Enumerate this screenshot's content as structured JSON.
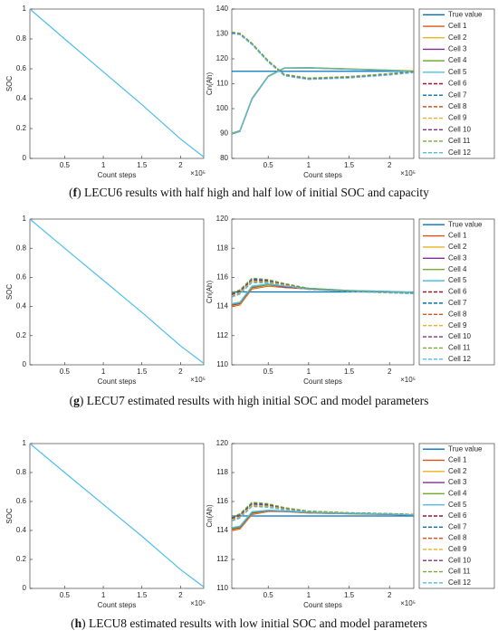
{
  "chart_data": [
    {
      "type": "line",
      "x_label": "Count steps",
      "y_label": "SOC",
      "x_exponent": "×10⁵",
      "xlim": [
        0.05,
        2.3
      ],
      "xticks": [
        0.5,
        1,
        1.5,
        2
      ],
      "ylim": [
        0,
        1
      ],
      "yticks": [
        0,
        0.2,
        0.4,
        0.6,
        0.8,
        1
      ],
      "x": [
        0.05,
        0.5,
        1,
        1.5,
        2,
        2.3
      ],
      "series": [
        {
          "color": "#4DBEEE",
          "values": [
            1,
            0.8,
            0.58,
            0.36,
            0.13,
            0.01
          ]
        }
      ]
    },
    {
      "type": "line",
      "x_label": "Count steps",
      "y_label": "Cn(Ah)",
      "x_exponent": "×10⁵",
      "xlim": [
        0.05,
        2.3
      ],
      "xticks": [
        0.5,
        1,
        1.5,
        2
      ],
      "ylim": [
        80,
        140
      ],
      "yticks": [
        80,
        90,
        100,
        110,
        120,
        130,
        140
      ],
      "legend": "outside right",
      "x": [
        0.05,
        0.15,
        0.3,
        0.5,
        0.7,
        1.0,
        1.5,
        2.0,
        2.3
      ],
      "series": [
        {
          "name": "True value",
          "color": "#0072BD",
          "dash": false,
          "values": [
            115,
            115,
            115,
            115,
            115,
            115,
            115,
            115,
            115
          ]
        },
        {
          "name": "Cell 1",
          "color": "#D95319",
          "dash": false,
          "values": [
            90,
            91,
            104,
            113,
            116.3,
            116.4,
            115.9,
            115.4,
            115.1
          ]
        },
        {
          "name": "Cell 2",
          "color": "#EDB120",
          "dash": false,
          "values": [
            90.2,
            91.2,
            104.2,
            113.1,
            116.4,
            116.5,
            116,
            115.5,
            115.2
          ]
        },
        {
          "name": "Cell 3",
          "color": "#7E2F8E",
          "dash": false,
          "values": [
            89.8,
            90.8,
            103.8,
            112.9,
            116.2,
            116.3,
            115.8,
            115.3,
            115
          ]
        },
        {
          "name": "Cell 4",
          "color": "#77AC30",
          "dash": false,
          "values": [
            90.1,
            91.1,
            104.1,
            113,
            116.3,
            116.4,
            115.9,
            115.4,
            115.1
          ]
        },
        {
          "name": "Cell 5",
          "color": "#4DBEEE",
          "dash": false,
          "values": [
            89.9,
            90.9,
            103.9,
            112.8,
            116.2,
            116.3,
            115.8,
            115.3,
            115
          ]
        },
        {
          "name": "Cell 6",
          "color": "#A2142F",
          "dash": true,
          "values": [
            130.5,
            130,
            126,
            119,
            113.5,
            112,
            112.6,
            113.8,
            114.8
          ]
        },
        {
          "name": "Cell 7",
          "color": "#0072BD",
          "dash": true,
          "values": [
            130.7,
            130.2,
            126.2,
            119.2,
            113.7,
            112.2,
            112.8,
            114,
            115
          ]
        },
        {
          "name": "Cell 8",
          "color": "#D95319",
          "dash": true,
          "values": [
            130.3,
            129.8,
            125.8,
            118.8,
            113.3,
            111.8,
            112.4,
            113.6,
            114.6
          ]
        },
        {
          "name": "Cell 9",
          "color": "#EDB120",
          "dash": true,
          "values": [
            130.6,
            130.1,
            126.1,
            119.1,
            113.6,
            112.1,
            112.7,
            113.9,
            114.9
          ]
        },
        {
          "name": "Cell 10",
          "color": "#7E2F8E",
          "dash": true,
          "values": [
            130.4,
            129.9,
            125.9,
            118.9,
            113.4,
            111.9,
            112.5,
            113.7,
            114.7
          ]
        },
        {
          "name": "Cell 11",
          "color": "#77AC30",
          "dash": true,
          "values": [
            130.8,
            130.3,
            126.3,
            119.3,
            113.8,
            112.3,
            112.9,
            114.1,
            115.1
          ]
        },
        {
          "name": "Cell 12",
          "color": "#4DBEEE",
          "dash": true,
          "values": [
            130.2,
            129.7,
            125.7,
            118.7,
            113.2,
            111.7,
            112.3,
            113.5,
            114.5
          ]
        }
      ]
    },
    {
      "type": "line",
      "x_label": "Count steps",
      "y_label": "SOC",
      "x_exponent": "×10⁵",
      "xlim": [
        0.05,
        2.3
      ],
      "xticks": [
        0.5,
        1,
        1.5,
        2
      ],
      "ylim": [
        0,
        1
      ],
      "yticks": [
        0,
        0.2,
        0.4,
        0.6,
        0.8,
        1
      ],
      "x": [
        0.05,
        0.5,
        1,
        1.5,
        2,
        2.3
      ],
      "series": [
        {
          "color": "#4DBEEE",
          "values": [
            1,
            0.8,
            0.58,
            0.36,
            0.13,
            0.01
          ]
        }
      ]
    },
    {
      "type": "line",
      "x_label": "Count steps",
      "y_label": "Cn(Ah)",
      "x_exponent": "×10⁵",
      "xlim": [
        0.05,
        2.3
      ],
      "xticks": [
        0.5,
        1,
        1.5,
        2
      ],
      "ylim": [
        110,
        120
      ],
      "yticks": [
        110,
        112,
        114,
        116,
        118,
        120
      ],
      "legend": "outside right",
      "x": [
        0.05,
        0.15,
        0.3,
        0.5,
        0.7,
        1.0,
        1.5,
        2.0,
        2.3
      ],
      "series": [
        {
          "name": "True value",
          "color": "#0072BD",
          "dash": false,
          "values": [
            115,
            115,
            115,
            115,
            115,
            115,
            115,
            115,
            115
          ]
        },
        {
          "name": "Cell 1",
          "color": "#D95319",
          "dash": false,
          "values": [
            114,
            114.1,
            115.2,
            115.4,
            115.3,
            115.2,
            115.05,
            115,
            114.95
          ]
        },
        {
          "name": "Cell 2",
          "color": "#EDB120",
          "dash": false,
          "values": [
            114.05,
            114.15,
            115.25,
            115.45,
            115.35,
            115.22,
            115.07,
            115.02,
            114.96
          ]
        },
        {
          "name": "Cell 3",
          "color": "#7E2F8E",
          "dash": false,
          "values": [
            114.1,
            114.2,
            115.3,
            115.5,
            115.35,
            115.23,
            115.08,
            115.02,
            114.97
          ]
        },
        {
          "name": "Cell 4",
          "color": "#77AC30",
          "dash": false,
          "values": [
            114.15,
            114.25,
            115.35,
            115.5,
            115.4,
            115.25,
            115.1,
            115.03,
            114.97
          ]
        },
        {
          "name": "Cell 5",
          "color": "#4DBEEE",
          "dash": false,
          "values": [
            114.2,
            114.3,
            115.4,
            115.55,
            115.4,
            115.26,
            115.1,
            115.04,
            114.98
          ]
        },
        {
          "name": "Cell 6",
          "color": "#A2142F",
          "dash": true,
          "values": [
            114.8,
            115,
            115.8,
            115.7,
            115.5,
            115.2,
            115.05,
            114.95,
            114.9
          ]
        },
        {
          "name": "Cell 7",
          "color": "#0072BD",
          "dash": true,
          "values": [
            114.85,
            115.05,
            115.85,
            115.75,
            115.52,
            115.22,
            115.06,
            114.96,
            114.9
          ]
        },
        {
          "name": "Cell 8",
          "color": "#D95319",
          "dash": true,
          "values": [
            114.7,
            114.9,
            115.7,
            115.65,
            115.45,
            115.18,
            115.04,
            114.94,
            114.89
          ]
        },
        {
          "name": "Cell 9",
          "color": "#EDB120",
          "dash": true,
          "values": [
            114.75,
            114.95,
            115.75,
            115.68,
            115.48,
            115.19,
            115.05,
            114.95,
            114.9
          ]
        },
        {
          "name": "Cell 10",
          "color": "#7E2F8E",
          "dash": true,
          "values": [
            114.9,
            115.1,
            115.9,
            115.8,
            115.55,
            115.24,
            115.07,
            114.97,
            114.91
          ]
        },
        {
          "name": "Cell 11",
          "color": "#77AC30",
          "dash": true,
          "values": [
            114.95,
            115.15,
            115.95,
            115.85,
            115.58,
            115.25,
            115.08,
            114.97,
            114.91
          ]
        },
        {
          "name": "Cell 12",
          "color": "#4DBEEE",
          "dash": true,
          "values": [
            114.65,
            114.85,
            115.65,
            115.6,
            115.42,
            115.17,
            115.03,
            114.93,
            114.88
          ]
        }
      ]
    },
    {
      "type": "line",
      "x_label": "Count steps",
      "y_label": "SOC",
      "x_exponent": "×10⁵",
      "xlim": [
        0.05,
        2.3
      ],
      "xticks": [
        0.5,
        1,
        1.5,
        2
      ],
      "ylim": [
        0,
        1
      ],
      "yticks": [
        0,
        0.2,
        0.4,
        0.6,
        0.8,
        1
      ],
      "x": [
        0.05,
        0.5,
        1,
        1.5,
        2,
        2.3
      ],
      "series": [
        {
          "color": "#4DBEEE",
          "values": [
            1,
            0.8,
            0.58,
            0.36,
            0.13,
            0.01
          ]
        }
      ]
    },
    {
      "type": "line",
      "x_label": "Count steps",
      "y_label": "Cn(Ah)",
      "x_exponent": "×10⁵",
      "xlim": [
        0.05,
        2.3
      ],
      "xticks": [
        0.5,
        1,
        1.5,
        2
      ],
      "ylim": [
        110,
        120
      ],
      "yticks": [
        110,
        112,
        114,
        116,
        118,
        120
      ],
      "legend": "outside right",
      "x": [
        0.05,
        0.15,
        0.3,
        0.5,
        0.7,
        1.0,
        1.5,
        2.0,
        2.3
      ],
      "series": [
        {
          "name": "True value",
          "color": "#0072BD",
          "dash": false,
          "values": [
            115,
            115,
            115,
            115,
            115,
            115,
            115,
            115,
            115
          ]
        },
        {
          "name": "Cell 1",
          "color": "#D95319",
          "dash": false,
          "values": [
            114,
            114.1,
            115.1,
            115.3,
            115.3,
            115.2,
            115.15,
            115.1,
            115.05
          ]
        },
        {
          "name": "Cell 2",
          "color": "#EDB120",
          "dash": false,
          "values": [
            114.05,
            114.15,
            115.15,
            115.32,
            115.32,
            115.22,
            115.16,
            115.1,
            115.06
          ]
        },
        {
          "name": "Cell 3",
          "color": "#7E2F8E",
          "dash": false,
          "values": [
            114.1,
            114.2,
            115.2,
            115.35,
            115.33,
            115.23,
            115.17,
            115.11,
            115.06
          ]
        },
        {
          "name": "Cell 4",
          "color": "#77AC30",
          "dash": false,
          "values": [
            114.15,
            114.25,
            115.25,
            115.38,
            115.35,
            115.25,
            115.18,
            115.12,
            115.07
          ]
        },
        {
          "name": "Cell 5",
          "color": "#4DBEEE",
          "dash": false,
          "values": [
            114.2,
            114.3,
            115.3,
            115.4,
            115.36,
            115.26,
            115.19,
            115.12,
            115.07
          ]
        },
        {
          "name": "Cell 6",
          "color": "#A2142F",
          "dash": true,
          "values": [
            114.8,
            115,
            115.8,
            115.7,
            115.5,
            115.3,
            115.2,
            115.15,
            115.1
          ]
        },
        {
          "name": "Cell 7",
          "color": "#0072BD",
          "dash": true,
          "values": [
            114.85,
            115.05,
            115.85,
            115.75,
            115.52,
            115.32,
            115.21,
            115.16,
            115.1
          ]
        },
        {
          "name": "Cell 8",
          "color": "#D95319",
          "dash": true,
          "values": [
            114.7,
            114.9,
            115.7,
            115.65,
            115.45,
            115.28,
            115.19,
            115.14,
            115.09
          ]
        },
        {
          "name": "Cell 9",
          "color": "#EDB120",
          "dash": true,
          "values": [
            114.75,
            114.95,
            115.75,
            115.68,
            115.48,
            115.29,
            115.2,
            115.15,
            115.1
          ]
        },
        {
          "name": "Cell 10",
          "color": "#7E2F8E",
          "dash": true,
          "values": [
            114.9,
            115.1,
            115.9,
            115.8,
            115.55,
            115.33,
            115.22,
            115.16,
            115.11
          ]
        },
        {
          "name": "Cell 11",
          "color": "#77AC30",
          "dash": true,
          "values": [
            114.95,
            115.15,
            115.95,
            115.85,
            115.58,
            115.34,
            115.23,
            115.17,
            115.11
          ]
        },
        {
          "name": "Cell 12",
          "color": "#4DBEEE",
          "dash": true,
          "values": [
            114.65,
            114.85,
            115.65,
            115.6,
            115.42,
            115.27,
            115.18,
            115.13,
            115.08
          ]
        }
      ]
    }
  ],
  "captions": [
    [
      "(",
      "f",
      ") LECU6 results with half high and half low of initial SOC and capacity"
    ],
    [
      "(",
      "g",
      ") LECU7 estimated results with high initial SOC and model parameters"
    ],
    [
      "(",
      "h",
      ") LECU8 estimated results with low initial SOC and model parameters"
    ]
  ]
}
